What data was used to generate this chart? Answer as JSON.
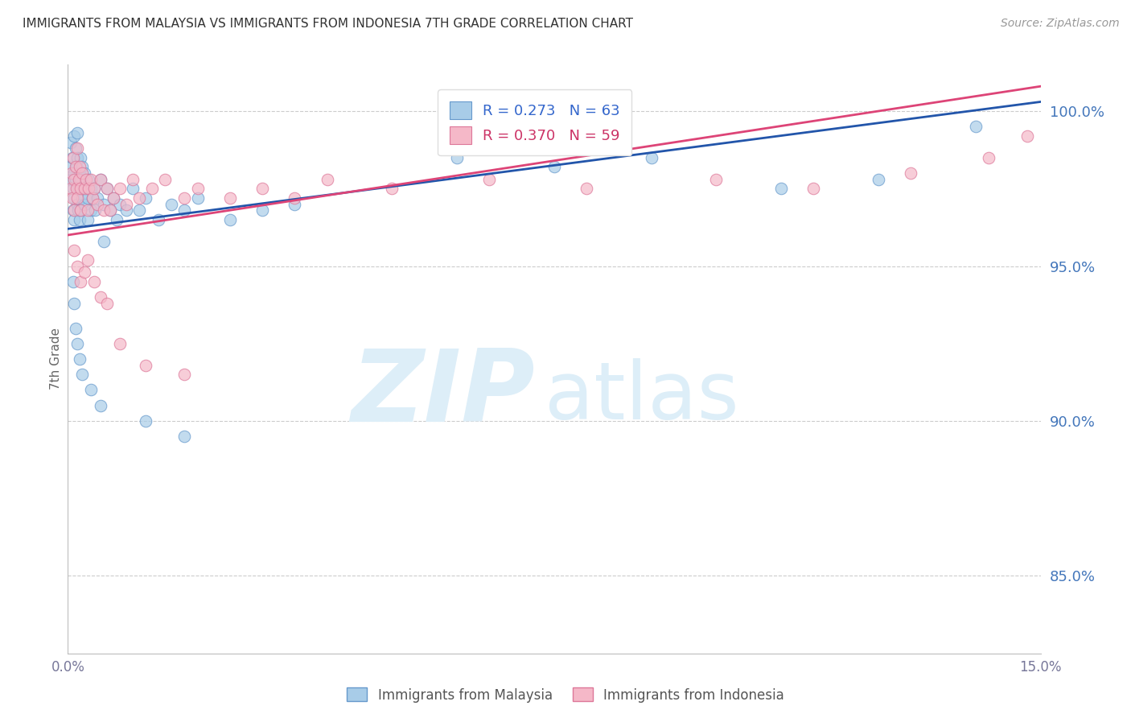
{
  "title": "IMMIGRANTS FROM MALAYSIA VS IMMIGRANTS FROM INDONESIA 7TH GRADE CORRELATION CHART",
  "source": "Source: ZipAtlas.com",
  "ylabel": "7th Grade",
  "y_ticks": [
    85.0,
    90.0,
    95.0,
    100.0
  ],
  "y_tick_labels": [
    "85.0%",
    "90.0%",
    "95.0%",
    "100.0%"
  ],
  "xlim": [
    0.0,
    15.0
  ],
  "ylim": [
    82.5,
    101.5
  ],
  "malaysia_color": "#a8cce8",
  "indonesia_color": "#f5b8c8",
  "malaysia_edge": "#6699cc",
  "indonesia_edge": "#dd7799",
  "trend_malaysia_color": "#2255aa",
  "trend_indonesia_color": "#dd4477",
  "R_malaysia": 0.273,
  "N_malaysia": 63,
  "R_indonesia": 0.37,
  "N_indonesia": 59,
  "malaysia_x": [
    0.05,
    0.05,
    0.05,
    0.07,
    0.08,
    0.08,
    0.09,
    0.1,
    0.1,
    0.1,
    0.12,
    0.12,
    0.13,
    0.14,
    0.15,
    0.15,
    0.15,
    0.16,
    0.17,
    0.18,
    0.18,
    0.2,
    0.2,
    0.2,
    0.22,
    0.22,
    0.25,
    0.25,
    0.28,
    0.3,
    0.3,
    0.32,
    0.35,
    0.35,
    0.38,
    0.4,
    0.42,
    0.45,
    0.5,
    0.55,
    0.55,
    0.6,
    0.65,
    0.7,
    0.75,
    0.8,
    0.9,
    1.0,
    1.1,
    1.2,
    1.4,
    1.6,
    1.8,
    2.0,
    2.5,
    3.0,
    3.5,
    6.0,
    7.5,
    9.0,
    11.0,
    12.5,
    14.0
  ],
  "malaysia_y": [
    97.8,
    98.2,
    99.0,
    98.5,
    97.5,
    96.8,
    99.2,
    98.0,
    97.2,
    96.5,
    98.8,
    97.8,
    98.2,
    97.0,
    99.3,
    98.5,
    97.5,
    96.8,
    97.5,
    98.0,
    96.5,
    98.5,
    97.8,
    96.8,
    98.2,
    97.2,
    98.0,
    97.0,
    97.5,
    97.2,
    96.5,
    97.8,
    97.5,
    96.8,
    97.2,
    97.5,
    96.8,
    97.2,
    97.8,
    97.0,
    95.8,
    97.5,
    96.8,
    97.2,
    96.5,
    97.0,
    96.8,
    97.5,
    96.8,
    97.2,
    96.5,
    97.0,
    96.8,
    97.2,
    96.5,
    96.8,
    97.0,
    98.5,
    98.2,
    98.5,
    97.5,
    97.8,
    99.5
  ],
  "malaysia_y_low": [
    94.5,
    93.8,
    93.0,
    92.5,
    92.0,
    91.5,
    91.0,
    90.5,
    90.0,
    89.5
  ],
  "malaysia_x_low": [
    0.08,
    0.1,
    0.12,
    0.15,
    0.18,
    0.22,
    0.35,
    0.5,
    1.2,
    1.8
  ],
  "indonesia_x": [
    0.05,
    0.06,
    0.07,
    0.08,
    0.1,
    0.1,
    0.12,
    0.13,
    0.15,
    0.15,
    0.17,
    0.18,
    0.2,
    0.2,
    0.22,
    0.25,
    0.28,
    0.3,
    0.32,
    0.35,
    0.38,
    0.4,
    0.45,
    0.5,
    0.55,
    0.6,
    0.65,
    0.7,
    0.8,
    0.9,
    1.0,
    1.1,
    1.3,
    1.5,
    1.8,
    2.0,
    2.5,
    3.0,
    3.5,
    4.0,
    5.0,
    6.5,
    8.0,
    10.0,
    11.5,
    13.0,
    14.2,
    14.8,
    0.1,
    0.15,
    0.2,
    0.25,
    0.3,
    0.4,
    0.5,
    0.6,
    0.8,
    1.2,
    1.8
  ],
  "indonesia_y": [
    97.5,
    98.0,
    97.2,
    98.5,
    97.8,
    96.8,
    98.2,
    97.5,
    98.8,
    97.2,
    97.8,
    98.2,
    97.5,
    96.8,
    98.0,
    97.5,
    97.8,
    96.8,
    97.5,
    97.8,
    97.2,
    97.5,
    97.0,
    97.8,
    96.8,
    97.5,
    96.8,
    97.2,
    97.5,
    97.0,
    97.8,
    97.2,
    97.5,
    97.8,
    97.2,
    97.5,
    97.2,
    97.5,
    97.2,
    97.8,
    97.5,
    97.8,
    97.5,
    97.8,
    97.5,
    98.0,
    98.5,
    99.2,
    95.5,
    95.0,
    94.5,
    94.8,
    95.2,
    94.5,
    94.0,
    93.8,
    92.5,
    91.8,
    91.5
  ],
  "watermark_zip": "ZIP",
  "watermark_atlas": "atlas",
  "watermark_color": "#ddeef8",
  "background_color": "#ffffff",
  "title_color": "#333333",
  "axis_color": "#4477bb",
  "grid_color": "#cccccc",
  "legend_color_malaysia": "#3366cc",
  "legend_color_indonesia": "#cc3366"
}
